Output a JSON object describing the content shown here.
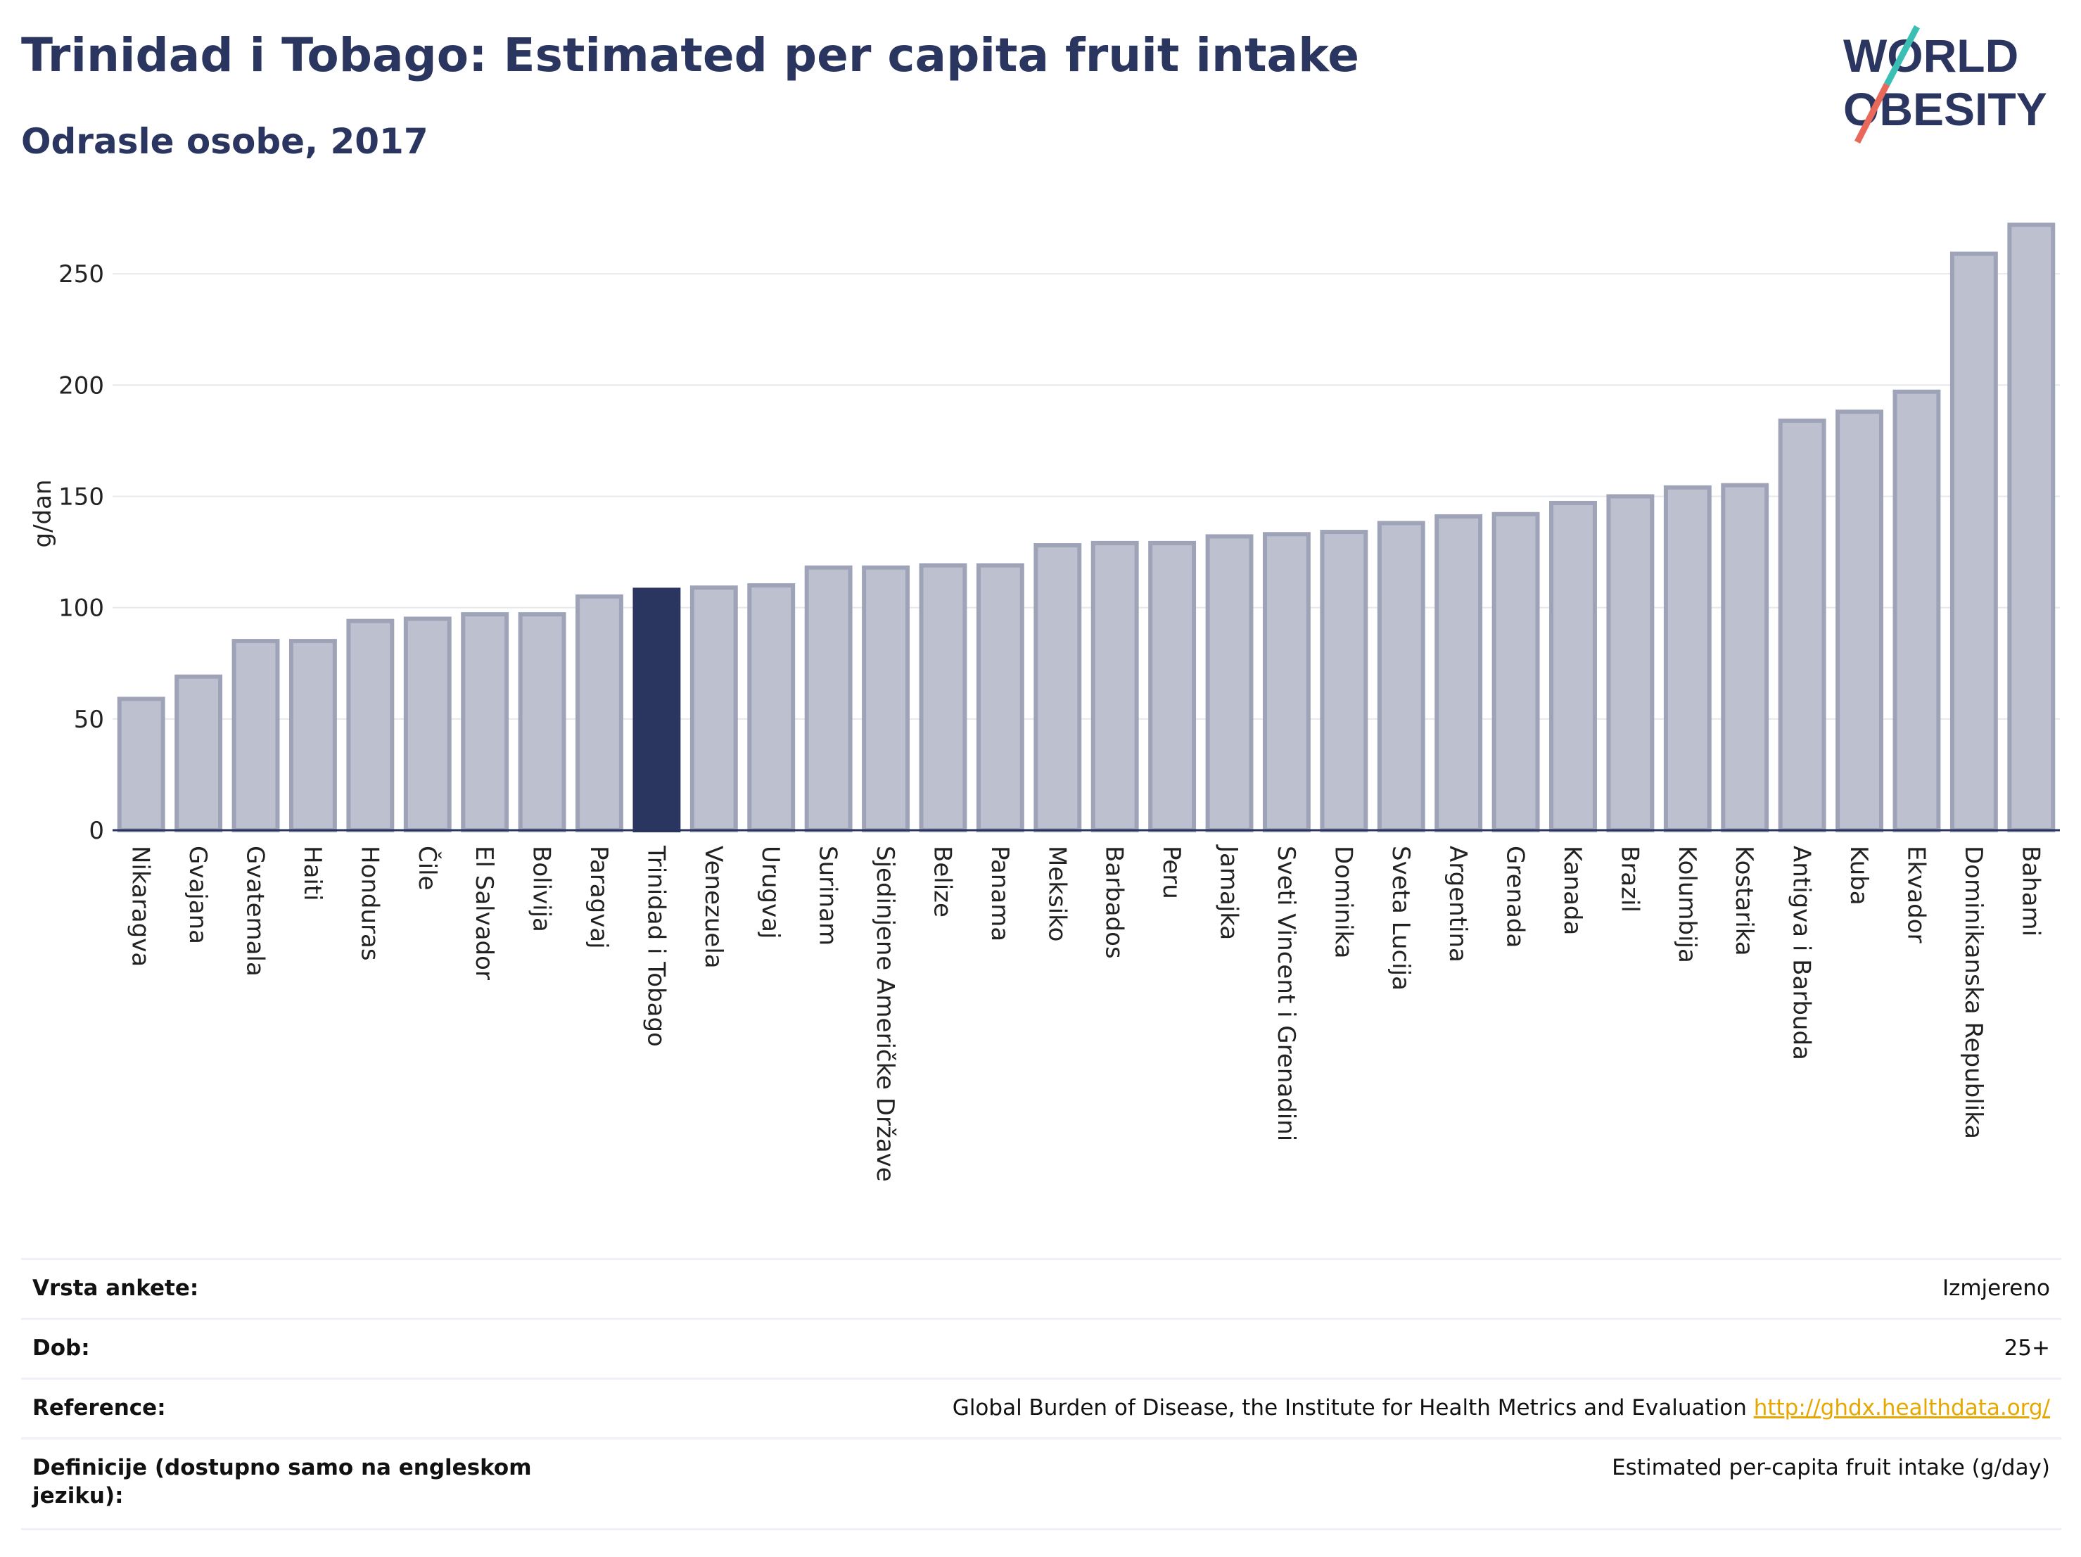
{
  "header": {
    "title": "Trinidad i Tobago: Estimated per capita fruit intake",
    "subtitle": "Odrasle osobe, 2017"
  },
  "logo": {
    "line1": "WORLD",
    "line2": "OBESITY"
  },
  "colors": {
    "highlight": "#2a3560",
    "bar": "#bcc0cf",
    "bar_stroke": "#9ea3b8",
    "link": "#e6a800"
  },
  "chart_data": {
    "type": "bar",
    "ylabel": "g/dan",
    "ylim": [
      0,
      275
    ],
    "yticks": [
      0,
      50,
      100,
      150,
      200,
      250
    ],
    "grid": true,
    "highlight_category": "Trinidad i Tobago",
    "categories": [
      "Nikaragva",
      "Gvajana",
      "Gvatemala",
      "Haiti",
      "Honduras",
      "Čile",
      "El Salvador",
      "Bolivija",
      "Paragvaj",
      "Trinidad i Tobago",
      "Venezuela",
      "Urugvaj",
      "Surinam",
      "Sjedinjene Američke Države",
      "Belize",
      "Panama",
      "Meksiko",
      "Barbados",
      "Peru",
      "Jamajka",
      "Sveti Vincent i Grenadini",
      "Dominika",
      "Sveta Lucija",
      "Argentina",
      "Grenada",
      "Kanada",
      "Brazil",
      "Kolumbija",
      "Kostarika",
      "Antigva i Barbuda",
      "Kuba",
      "Ekvador",
      "Dominikanska Republika",
      "Bahami"
    ],
    "values": [
      59,
      69,
      85,
      85,
      94,
      95,
      97,
      97,
      105,
      108,
      109,
      110,
      118,
      118,
      119,
      119,
      128,
      129,
      129,
      132,
      133,
      134,
      138,
      141,
      142,
      147,
      150,
      154,
      155,
      184,
      188,
      197,
      259,
      272
    ]
  },
  "meta": {
    "rows": [
      {
        "key": "Vrsta ankete:",
        "value": "Izmjereno"
      },
      {
        "key": "Dob:",
        "value": "25+"
      },
      {
        "key": "Reference:",
        "value": "Global Burden of Disease, the Institute for Health Metrics and Evaluation",
        "link": "http://ghdx.healthdata.org/"
      },
      {
        "key": "Definicije (dostupno samo na engleskom jeziku):",
        "value": "Estimated per-capita fruit intake (g/day)"
      }
    ]
  }
}
